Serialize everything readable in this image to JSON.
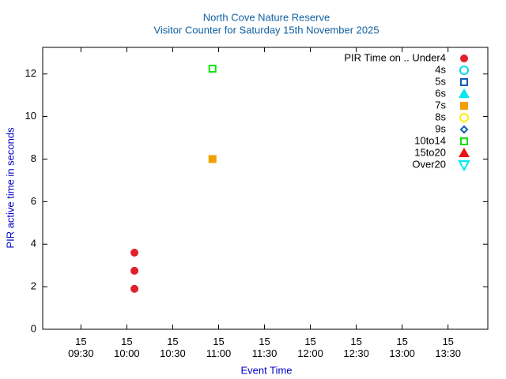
{
  "chart_data": {
    "type": "scatter",
    "title": "North Cove Nature Reserve",
    "subtitle": "Visitor Counter for Saturday 15th November 2025",
    "x_label": "Event Time",
    "y_label": "PIR active time in seconds",
    "xlim": [
      "09:05",
      "13:56"
    ],
    "xticks": [
      {
        "value": "09:30",
        "label": "15\n09:30"
      },
      {
        "value": "10:00",
        "label": "15\n10:00"
      },
      {
        "value": "10:30",
        "label": "15\n10:30"
      },
      {
        "value": "11:00",
        "label": "15\n11:00"
      },
      {
        "value": "11:30",
        "label": "15\n11:30"
      },
      {
        "value": "12:00",
        "label": "15\n12:00"
      },
      {
        "value": "12:30",
        "label": "15\n12:30"
      },
      {
        "value": "13:00",
        "label": "15\n13:00"
      },
      {
        "value": "13:30",
        "label": "15\n13:30"
      }
    ],
    "ylim": [
      0,
      13.25
    ],
    "yticks": [
      0,
      2,
      4,
      6,
      8,
      10,
      12
    ],
    "legend": "top-right",
    "series": [
      {
        "name": "PIR Time on .. Under4",
        "color": "#e0202a",
        "marker": "circle",
        "filled": true,
        "x": [
          "10:05",
          "10:05",
          "10:05"
        ],
        "values": [
          3.6,
          2.75,
          1.9
        ]
      },
      {
        "name": "4s",
        "color": "#00d8f0",
        "marker": "circle",
        "filled": false,
        "x": [],
        "values": []
      },
      {
        "name": "5s",
        "color": "#1060b0",
        "marker": "square",
        "filled": false,
        "x": [],
        "values": []
      },
      {
        "name": "6s",
        "color": "#00e8f0",
        "marker": "triangle",
        "filled": true,
        "x": [],
        "values": []
      },
      {
        "name": "7s",
        "color": "#f0a000",
        "marker": "square",
        "filled": true,
        "x": [
          "10:56"
        ],
        "values": [
          8
        ]
      },
      {
        "name": "8s",
        "color": "#f8f000",
        "marker": "circle",
        "filled": false,
        "x": [],
        "values": []
      },
      {
        "name": "9s",
        "color": "#1060b0",
        "marker": "diamond",
        "filled": false,
        "x": [],
        "values": []
      },
      {
        "name": "10to14",
        "color": "#10e010",
        "marker": "square",
        "filled": false,
        "x": [
          "10:56"
        ],
        "values": [
          12.25
        ]
      },
      {
        "name": "15to20",
        "color": "#f01010",
        "marker": "triangle",
        "filled": true,
        "x": [],
        "values": []
      },
      {
        "name": "Over20",
        "color": "#00e8f0",
        "marker": "triangle-down",
        "filled": false,
        "x": [],
        "values": []
      }
    ]
  }
}
